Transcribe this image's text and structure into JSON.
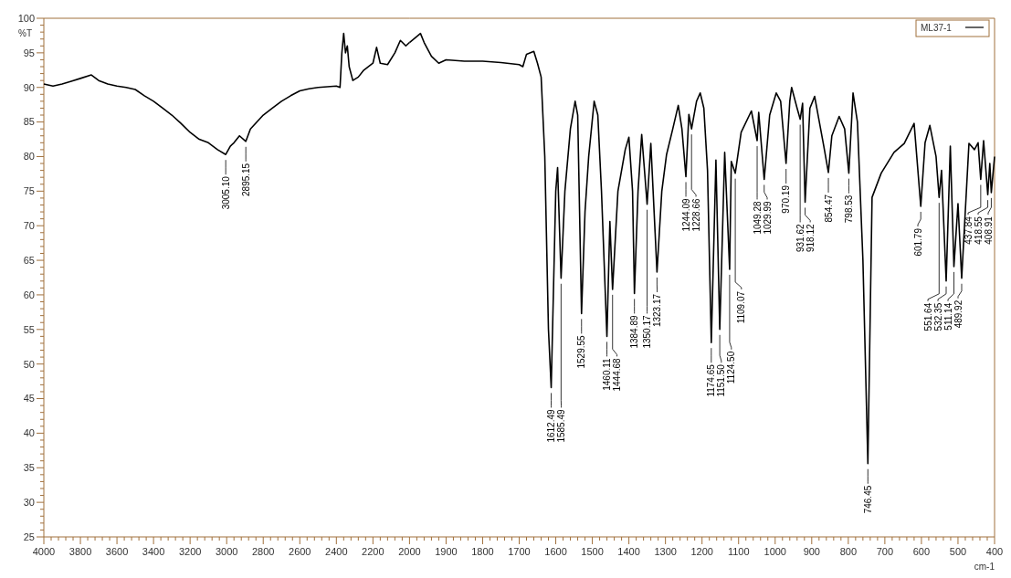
{
  "chart_data": [
    {
      "type": "line",
      "ylabel": "%T",
      "xlim": [
        4000,
        2000
      ],
      "ylim": [
        25,
        100
      ],
      "xticks": [
        4000,
        3800,
        3600,
        3400,
        3200,
        3000,
        2800,
        2600,
        2400,
        2200,
        2000
      ],
      "yticks": [
        25,
        30,
        35,
        40,
        45,
        50,
        55,
        60,
        65,
        70,
        75,
        80,
        85,
        90,
        95,
        100
      ],
      "grid": false,
      "marker": "none",
      "line_style": "solid",
      "series": [
        {
          "color": "#000000",
          "x": [
            4000,
            3950,
            3900,
            3850,
            3800,
            3740,
            3700,
            3650,
            3600,
            3550,
            3500,
            3450,
            3400,
            3350,
            3300,
            3250,
            3200,
            3150,
            3100,
            3050,
            3005.1,
            2980,
            2960,
            2930,
            2895.15,
            2870,
            2800,
            2750,
            2700,
            2650,
            2600,
            2550,
            2500,
            2450,
            2400,
            2380,
            2370,
            2360,
            2350,
            2340,
            2330,
            2310,
            2280,
            2250,
            2200,
            2180,
            2160,
            2120,
            2080,
            2050,
            2020,
            2000
          ],
          "values": [
            90.5,
            90.2,
            90.5,
            90.9,
            91.3,
            91.8,
            91,
            90.5,
            90.2,
            90,
            89.7,
            88.8,
            88,
            87,
            86,
            84.8,
            83.5,
            82.5,
            82,
            81,
            80.3,
            81.5,
            82,
            83,
            82.2,
            84,
            86,
            87,
            88,
            88.8,
            89.5,
            89.8,
            90,
            90.1,
            90.2,
            90,
            95,
            97.8,
            95,
            96,
            93,
            91,
            91.5,
            92.5,
            93.5,
            95.8,
            93.5,
            93.3,
            95,
            96.8,
            96,
            96.5
          ]
        }
      ],
      "annotations": [
        {
          "text": "3005.10",
          "x": 3005.1,
          "y": 80.3
        },
        {
          "text": "2895.15",
          "x": 2895.15,
          "y": 82.2
        }
      ]
    },
    {
      "type": "line",
      "xlabel": "cm-1",
      "xlim": [
        2000,
        400
      ],
      "ylim": [
        25,
        100
      ],
      "xticks": [
        1900,
        1800,
        1700,
        1600,
        1500,
        1400,
        1300,
        1200,
        1100,
        1000,
        900,
        800,
        700,
        600,
        500,
        400
      ],
      "yticks": [
        25,
        30,
        35,
        40,
        45,
        50,
        55,
        60,
        65,
        70,
        75,
        80,
        85,
        90,
        95,
        100
      ],
      "tick_labels": "x",
      "grid": false,
      "legend": "top right",
      "marker": "none",
      "line_style": "solid",
      "series": [
        {
          "name": "ML37-1",
          "color": "#000000",
          "x": [
            2000,
            1970,
            1960,
            1940,
            1920,
            1900,
            1850,
            1800,
            1750,
            1700,
            1690,
            1680,
            1660,
            1650,
            1640,
            1630,
            1620,
            1612.49,
            1600,
            1595,
            1585.49,
            1575,
            1560,
            1547,
            1540,
            1529.55,
            1520,
            1510,
            1495,
            1485,
            1475,
            1460.11,
            1452,
            1444.68,
            1430,
            1410,
            1400,
            1390,
            1384.89,
            1375,
            1365,
            1350.17,
            1340,
            1323.17,
            1310,
            1297,
            1280,
            1265,
            1255,
            1244.09,
            1236,
            1228.66,
            1215,
            1205,
            1195,
            1185,
            1174.65,
            1162,
            1151.5,
            1138,
            1124.5,
            1120,
            1109.07,
            1093,
            1065,
            1049.28,
            1045,
            1029.99,
            1015,
            997,
            985,
            970.19,
            960,
            955,
            940,
            931.62,
            925,
            918.12,
            905,
            892,
            867,
            854.47,
            845,
            825,
            810,
            798.53,
            787,
            775,
            760,
            746.45,
            735,
            710,
            675,
            647,
            620,
            601.79,
            590,
            577,
            560,
            551.64,
            545,
            532.35,
            521,
            511.14,
            500,
            489.92,
            470,
            455,
            445,
            437.84,
            430,
            418.55,
            413,
            408.91,
            400
          ],
          "values": [
            96.5,
            97.8,
            96.5,
            94.5,
            93.5,
            94,
            93.8,
            93.8,
            93.6,
            93.3,
            93,
            94.8,
            95.2,
            93.5,
            91.5,
            80,
            55,
            46.6,
            75,
            78.4,
            62.4,
            75,
            84,
            88,
            86,
            57.3,
            72,
            80,
            88,
            86,
            75,
            54,
            70.6,
            60.8,
            75,
            81,
            82.8,
            75,
            60.2,
            75,
            83.2,
            73.1,
            81.9,
            63.3,
            75,
            80.3,
            84,
            87.4,
            84,
            77.1,
            86.1,
            84,
            88,
            89.2,
            87,
            78,
            53.1,
            79.5,
            55,
            80.6,
            63.7,
            79.3,
            77.6,
            83.5,
            86.6,
            82.3,
            86.4,
            76.7,
            86,
            89.2,
            88,
            79,
            88,
            90,
            87,
            85.4,
            87.7,
            73.4,
            87,
            88.7,
            81.5,
            77.7,
            83,
            85.8,
            84,
            77.6,
            89.2,
            85,
            65,
            35.6,
            74.1,
            77.6,
            80.6,
            81.9,
            84.8,
            72.8,
            82,
            84.5,
            80,
            74.1,
            78,
            62,
            81.5,
            64.1,
            73.2,
            62.4,
            81.9,
            81,
            82,
            76.7,
            82.3,
            74.5,
            79,
            74.8,
            80
          ]
        }
      ],
      "annotations": [
        {
          "text": "1612.49",
          "x": 1612.49,
          "y": 46.6
        },
        {
          "text": "1585.49",
          "x": 1585.49,
          "y": 62.4
        },
        {
          "text": "1529.55",
          "x": 1529.55,
          "y": 57.3
        },
        {
          "text": "1460.11",
          "x": 1460.11,
          "y": 54
        },
        {
          "text": "1444.68",
          "x": 1444.68,
          "y": 60.8
        },
        {
          "text": "1384.89",
          "x": 1384.89,
          "y": 60.2
        },
        {
          "text": "1350.17",
          "x": 1350.17,
          "y": 73.1
        },
        {
          "text": "1323.17",
          "x": 1323.17,
          "y": 63.3
        },
        {
          "text": "1244.09",
          "x": 1244.09,
          "y": 77.1
        },
        {
          "text": "1228.66",
          "x": 1228.66,
          "y": 84
        },
        {
          "text": "1174.65",
          "x": 1174.65,
          "y": 53.1
        },
        {
          "text": "1151.50",
          "x": 1151.5,
          "y": 55
        },
        {
          "text": "1124.50",
          "x": 1124.5,
          "y": 63.7
        },
        {
          "text": "1109.07",
          "x": 1109.07,
          "y": 77.6
        },
        {
          "text": "1049.28",
          "x": 1049.28,
          "y": 82.3
        },
        {
          "text": "1029.99",
          "x": 1029.99,
          "y": 76.7
        },
        {
          "text": "970.19",
          "x": 970.19,
          "y": 79
        },
        {
          "text": "931.62",
          "x": 931.62,
          "y": 85.4
        },
        {
          "text": "918.12",
          "x": 918.12,
          "y": 73.4
        },
        {
          "text": "854.47",
          "x": 854.47,
          "y": 77.7
        },
        {
          "text": "798.53",
          "x": 798.53,
          "y": 77.6
        },
        {
          "text": "746.45",
          "x": 746.45,
          "y": 35.6
        },
        {
          "text": "601.79",
          "x": 601.79,
          "y": 72.8
        },
        {
          "text": "551.64",
          "x": 551.64,
          "y": 74.1
        },
        {
          "text": "532.35",
          "x": 532.35,
          "y": 62
        },
        {
          "text": "511.14",
          "x": 511.14,
          "y": 64.1
        },
        {
          "text": "489.92",
          "x": 489.92,
          "y": 62.4
        },
        {
          "text": "437.84",
          "x": 437.84,
          "y": 76.7
        },
        {
          "text": "418.55",
          "x": 418.55,
          "y": 74.5
        },
        {
          "text": "408.91",
          "x": 408.91,
          "y": 74.8
        }
      ]
    }
  ]
}
